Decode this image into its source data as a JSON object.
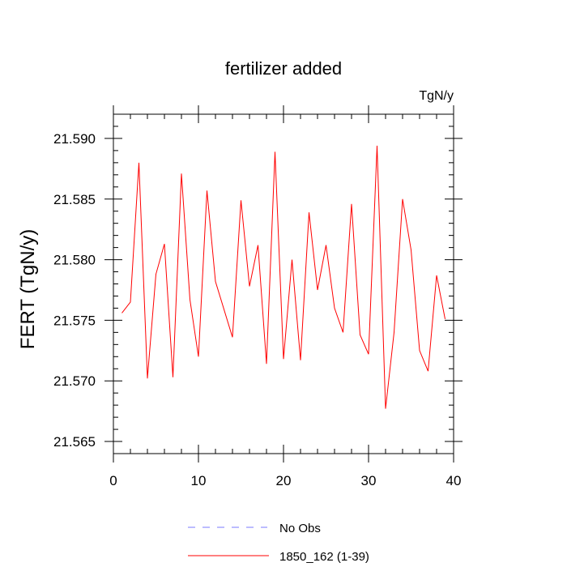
{
  "chart_data": {
    "type": "line",
    "title": "fertilizer added",
    "units_label": "TgN/y",
    "ylabel": "FERT  (TgN/y)",
    "xlabel": "",
    "xlim": [
      0,
      40
    ],
    "ylim": [
      21.564,
      21.592
    ],
    "x_ticks": [
      0,
      10,
      20,
      30,
      40
    ],
    "y_ticks": [
      21.565,
      21.57,
      21.575,
      21.58,
      21.585,
      21.59
    ],
    "y_tick_labels": [
      "21.565",
      "21.570",
      "21.575",
      "21.580",
      "21.585",
      "21.590"
    ],
    "grid": false,
    "series": [
      {
        "name": "1850_162 (1-39)",
        "color": "#ff0000",
        "x": [
          1,
          2,
          3,
          4,
          5,
          6,
          7,
          8,
          9,
          10,
          11,
          12,
          13,
          14,
          15,
          16,
          17,
          18,
          19,
          20,
          21,
          22,
          23,
          24,
          25,
          26,
          27,
          28,
          29,
          30,
          31,
          32,
          33,
          34,
          35,
          36,
          37,
          38,
          39
        ],
        "values": [
          21.5756,
          21.5765,
          21.588,
          21.5702,
          21.5788,
          21.5813,
          21.5703,
          21.5871,
          21.5767,
          21.572,
          21.5857,
          21.5782,
          21.5759,
          21.5736,
          21.5849,
          21.5778,
          21.5812,
          21.5714,
          21.5889,
          21.5718,
          21.58,
          21.5717,
          21.5839,
          21.5775,
          21.5812,
          21.576,
          21.574,
          21.5846,
          21.5738,
          21.5722,
          21.5894,
          21.5677,
          21.574,
          21.585,
          21.5808,
          21.5725,
          21.5708,
          21.5787,
          21.5751
        ]
      }
    ],
    "legend": {
      "placement": "bottom-center",
      "entries": [
        {
          "label": "No Obs",
          "color": "#7a7aff",
          "style": "dashed"
        },
        {
          "label": "1850_162 (1-39)",
          "color": "#ff0000",
          "style": "solid"
        }
      ]
    }
  }
}
